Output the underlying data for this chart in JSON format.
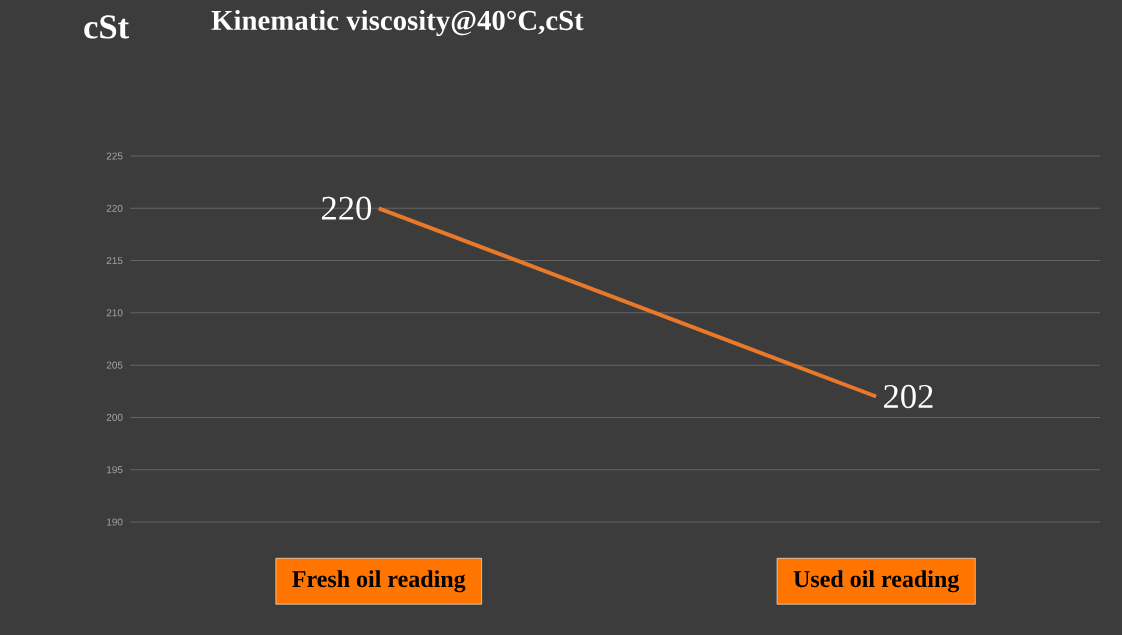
{
  "chart_data": {
    "type": "line",
    "title": "Kinematic viscosity@40°C,cSt",
    "ylabel": "cSt",
    "categories": [
      "Fresh oil reading",
      "Used oil reading"
    ],
    "series": [
      {
        "color": "#e8792b",
        "values": [
          220,
          202
        ]
      }
    ],
    "ylim": [
      190,
      225
    ],
    "yticks": [
      190,
      195,
      200,
      205,
      210,
      215,
      220,
      225
    ],
    "grid": "y",
    "data_labels": true,
    "marker": "none",
    "line_style": "solid"
  }
}
